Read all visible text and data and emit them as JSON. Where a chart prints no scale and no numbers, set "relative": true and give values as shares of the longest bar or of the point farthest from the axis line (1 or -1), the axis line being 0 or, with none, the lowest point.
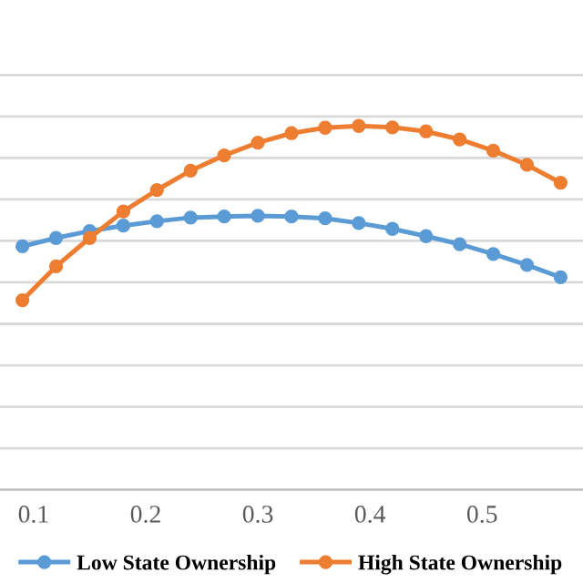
{
  "chart_data": {
    "type": "line",
    "relative": true,
    "x": [
      0.09,
      0.12,
      0.15,
      0.18,
      0.21,
      0.24,
      0.27,
      0.3,
      0.33,
      0.36,
      0.39,
      0.42,
      0.45,
      0.48,
      0.51,
      0.54,
      0.57
    ],
    "series": [
      {
        "name": "Low State Ownership",
        "color": "#5b9bd5",
        "values": [
          0.669,
          0.692,
          0.711,
          0.726,
          0.738,
          0.748,
          0.751,
          0.753,
          0.751,
          0.746,
          0.733,
          0.717,
          0.697,
          0.675,
          0.648,
          0.618,
          0.584
        ]
      },
      {
        "name": "High State Ownership",
        "color": "#ed7d31",
        "values": [
          0.521,
          0.614,
          0.692,
          0.765,
          0.824,
          0.877,
          0.919,
          0.954,
          0.98,
          0.995,
          1,
          0.996,
          0.985,
          0.963,
          0.932,
          0.893,
          0.844
        ]
      }
    ],
    "xlim": [
      0.07,
      0.59
    ],
    "xticks": [
      0.1,
      0.2,
      0.3,
      0.4,
      0.5
    ],
    "grid": "y",
    "legend": "bottom",
    "marker": "circle",
    "line_style": "solid"
  }
}
